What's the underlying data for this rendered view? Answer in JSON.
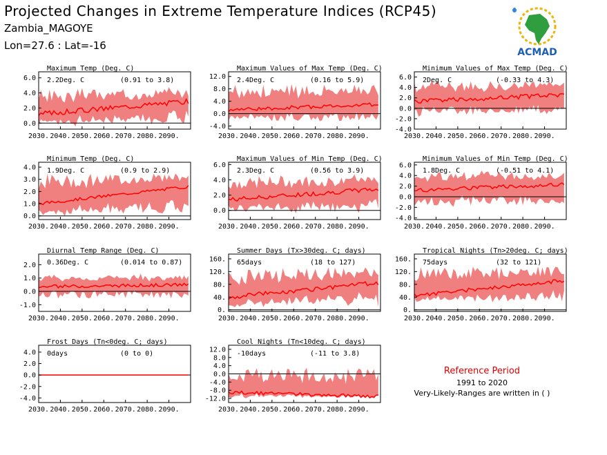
{
  "header": {
    "title": "Projected Changes in Extreme Temperature Indices (RCP45)",
    "location": "Zambia_MAGOYE",
    "coords": "Lon=27.6 : Lat=-16"
  },
  "logo": {
    "text": "ACMAD"
  },
  "reference": {
    "title": "Reference Period",
    "years": "1991 to 2020",
    "note": "Very-Likely-Ranges are written in ( )"
  },
  "colors": {
    "band": "#f08080",
    "line": "#ff0000",
    "axis": "#000000"
  },
  "chart_data": [
    {
      "type": "area",
      "title": "Maximum Temp (Deg. C)",
      "value": "2.2Deg. C",
      "range": "(0.91 to 3.8)",
      "x_ticks": [
        "2030.",
        "2040.",
        "2050.",
        "2060.",
        "2070.",
        "2080.",
        "2090."
      ],
      "xlim": [
        2030,
        2100
      ],
      "y_ticks": [
        "0.0",
        "2.0",
        "4.0",
        "6.0"
      ],
      "y_tick_values": [
        0,
        2,
        4,
        6
      ],
      "ylim": [
        -0.8,
        6.8
      ],
      "series": [
        {
          "start": 1.2,
          "end": 2.9,
          "noise": 0.35,
          "lower": -0.3,
          "upper": 4.6
        }
      ]
    },
    {
      "type": "area",
      "title": "Maximum Values of Max Temp (Deg. C)",
      "value": "2.4Deg. C",
      "range": "(0.16 to 5.9)",
      "x_ticks": [
        "2030.",
        "2040.",
        "2050.",
        "2060.",
        "2070.",
        "2080.",
        "2090."
      ],
      "xlim": [
        2030,
        2100
      ],
      "y_ticks": [
        "-4.0",
        "0.0",
        "4.0",
        "8.0",
        "12.0"
      ],
      "y_tick_values": [
        -4,
        0,
        4,
        8,
        12
      ],
      "ylim": [
        -5,
        13.5
      ],
      "series": [
        {
          "start": 1.2,
          "end": 3.0,
          "noise": 0.6,
          "lower": -2.5,
          "upper": 10.0
        }
      ]
    },
    {
      "type": "area",
      "title": "Minimum Values of Max Temp (Deg. C)",
      "value": "2Deg. C",
      "range": "(-0.33 to 4.3)",
      "x_ticks": [
        "2030.",
        "2040.",
        "2050.",
        "2060.",
        "2070.",
        "2080.",
        "2090."
      ],
      "xlim": [
        2030,
        2100
      ],
      "y_ticks": [
        "-4.0",
        "-2.0",
        "0.0",
        "2.0",
        "4.0",
        "6.0"
      ],
      "y_tick_values": [
        -4,
        -2,
        0,
        2,
        4,
        6
      ],
      "ylim": [
        -4,
        7
      ],
      "series": [
        {
          "start": 1.3,
          "end": 2.6,
          "noise": 0.45,
          "lower": -1.5,
          "upper": 5.3
        }
      ]
    },
    {
      "type": "area",
      "title": "Minimum Temp (Deg. C)",
      "value": "1.9Deg. C",
      "range": "(0.9 to 2.9)",
      "x_ticks": [
        "2030.",
        "2040.",
        "2050.",
        "2060.",
        "2070.",
        "2080.",
        "2090."
      ],
      "xlim": [
        2030,
        2100
      ],
      "y_ticks": [
        "0.0",
        "1.0",
        "2.0",
        "3.0",
        "4.0"
      ],
      "y_tick_values": [
        0,
        1,
        2,
        3,
        4
      ],
      "ylim": [
        -0.3,
        4.4
      ],
      "series": [
        {
          "start": 1.0,
          "end": 2.4,
          "noise": 0.12,
          "lower": 0.0,
          "upper": 3.6
        }
      ]
    },
    {
      "type": "area",
      "title": "Maximum Values of Min Temp (Deg. C)",
      "value": "2.3Deg. C",
      "range": "(0.56 to 3.9)",
      "x_ticks": [
        "2030.",
        "2040.",
        "2050.",
        "2060.",
        "2070.",
        "2080.",
        "2090."
      ],
      "xlim": [
        2030,
        2100
      ],
      "y_ticks": [
        "0.0",
        "2.0",
        "4.0",
        "6.0"
      ],
      "y_tick_values": [
        0,
        2,
        4,
        6
      ],
      "ylim": [
        -1.2,
        6.3
      ],
      "series": [
        {
          "start": 1.4,
          "end": 2.8,
          "noise": 0.3,
          "lower": -0.3,
          "upper": 4.6
        }
      ]
    },
    {
      "type": "area",
      "title": "Minimum Values of Min Temp (Deg. C)",
      "value": "1.8Deg. C",
      "range": "(-0.51 to 4.1)",
      "x_ticks": [
        "2030.",
        "2040.",
        "2050.",
        "2060.",
        "2070.",
        "2080.",
        "2090."
      ],
      "xlim": [
        2030,
        2100
      ],
      "y_ticks": [
        "-4.0",
        "-2.0",
        "0.0",
        "2.0",
        "4.0",
        "6.0"
      ],
      "y_tick_values": [
        -4,
        -2,
        0,
        2,
        4,
        6
      ],
      "ylim": [
        -4.3,
        6.5
      ],
      "series": [
        {
          "start": 1.2,
          "end": 2.3,
          "noise": 0.4,
          "lower": -2.0,
          "upper": 4.8
        }
      ]
    },
    {
      "type": "area",
      "title": "Diurnal Temp Range (Deg. C)",
      "value": "0.36Deg. C",
      "range": "(0.014 to 0.87)",
      "x_ticks": [
        "2030.",
        "2040.",
        "2050.",
        "2060.",
        "2070.",
        "2080.",
        "2090."
      ],
      "xlim": [
        2030,
        2100
      ],
      "y_ticks": [
        "-1.0",
        "0.0",
        "1.0",
        "2.0"
      ],
      "y_tick_values": [
        -1,
        0,
        1,
        2
      ],
      "ylim": [
        -1.5,
        2.8
      ],
      "series": [
        {
          "start": 0.35,
          "end": 0.5,
          "noise": 0.12,
          "lower": -0.5,
          "upper": 1.3
        }
      ]
    },
    {
      "type": "area",
      "title": "Summer Days (Tx>30deg. C; days)",
      "value": "65days",
      "range": "(18 to 127)",
      "x_ticks": [
        "2030.",
        "2040.",
        "2050.",
        "2060.",
        "2070.",
        "2080.",
        "2090."
      ],
      "xlim": [
        2030,
        2100
      ],
      "y_ticks": [
        "0.",
        "40.",
        "80.",
        "120.",
        "160."
      ],
      "y_tick_values": [
        0,
        40,
        80,
        120,
        160
      ],
      "ylim": [
        -5,
        175
      ],
      "series": [
        {
          "start": 40,
          "end": 85,
          "noise": 7,
          "lower": 10,
          "upper": 135
        }
      ]
    },
    {
      "type": "area",
      "title": "Tropical Nights (Tn>20deg. C; days)",
      "value": "75days",
      "range": "(32 to 121)",
      "x_ticks": [
        "2030.",
        "2040.",
        "2050.",
        "2060.",
        "2070.",
        "2080.",
        "2090."
      ],
      "xlim": [
        2030,
        2100
      ],
      "y_ticks": [
        "0.",
        "40.",
        "80.",
        "120.",
        "160."
      ],
      "y_tick_values": [
        0,
        40,
        80,
        120,
        160
      ],
      "ylim": [
        -5,
        175
      ],
      "series": [
        {
          "start": 45,
          "end": 92,
          "noise": 6,
          "lower": 25,
          "upper": 140
        }
      ]
    },
    {
      "type": "area",
      "title": "Frost Days (Tn<0deg. C; days)",
      "value": "0days",
      "range": "(0 to 0)",
      "x_ticks": [
        "2030.",
        "2040.",
        "2050.",
        "2060.",
        "2070.",
        "2080.",
        "2090."
      ],
      "xlim": [
        2030,
        2100
      ],
      "y_ticks": [
        "-4.0",
        "-2.0",
        "0.0",
        "2.0",
        "4.0"
      ],
      "y_tick_values": [
        -4,
        -2,
        0,
        2,
        4
      ],
      "ylim": [
        -4.8,
        5.2
      ],
      "series": [
        {
          "start": 0,
          "end": 0,
          "noise": 0,
          "lower": 0,
          "upper": 0
        }
      ]
    },
    {
      "type": "area",
      "title": "Cool Nights (Tn<10deg. C; days)",
      "value": "-10days",
      "range": "(-11 to 3.8)",
      "x_ticks": [
        "2030.",
        "2040.",
        "2050.",
        "2060.",
        "2070.",
        "2080.",
        "2090."
      ],
      "xlim": [
        2030,
        2100
      ],
      "y_ticks": [
        "-12.0",
        "-8.0",
        "-4.0",
        "0.0",
        "4.0",
        "8.0",
        "12.0"
      ],
      "y_tick_values": [
        -12,
        -8,
        -4,
        0,
        4,
        8,
        12
      ],
      "ylim": [
        -14,
        14
      ],
      "series": [
        {
          "start": -9,
          "end": -11,
          "noise": 0.8,
          "lower": -11.5,
          "upper": 3.8
        }
      ]
    }
  ]
}
